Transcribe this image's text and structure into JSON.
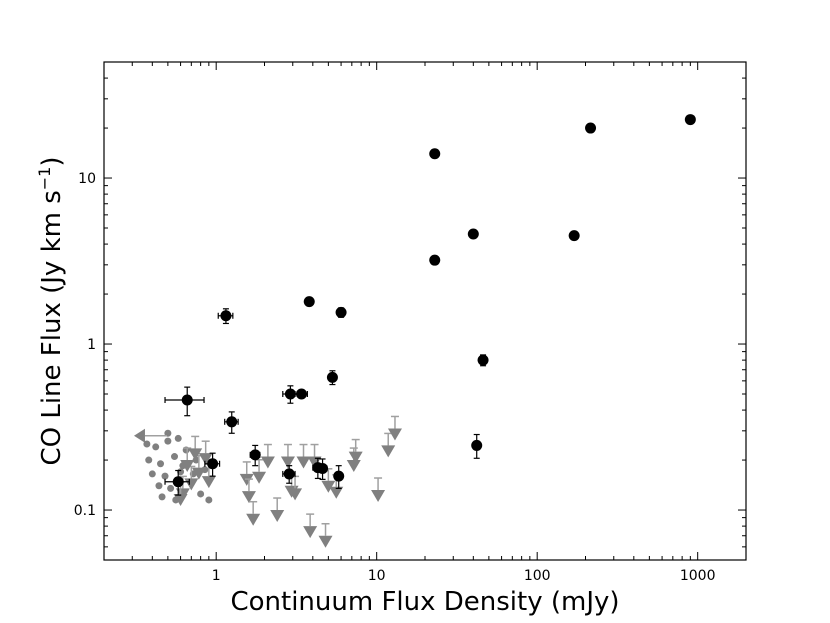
{
  "chart_data": {
    "type": "scatter",
    "xlabel": "Continuum Flux Density (mJy)",
    "ylabel": "CO Line Flux (Jy km s",
    "ylabel_sup": "−1",
    "ylabel_close": ")",
    "xscale": "log",
    "yscale": "log",
    "xlim": [
      0.2,
      2000
    ],
    "ylim": [
      0.05,
      50
    ],
    "grid": false,
    "x_ticks": [
      {
        "value": 1,
        "label": "1"
      },
      {
        "value": 10,
        "label": "10"
      },
      {
        "value": 100,
        "label": "100"
      },
      {
        "value": 1000,
        "label": "1000"
      }
    ],
    "y_ticks": [
      {
        "value": 0.1,
        "label": "0.1"
      },
      {
        "value": 1,
        "label": "1"
      },
      {
        "value": 10,
        "label": "10"
      }
    ],
    "colors": {
      "detections": "#000000",
      "limits": "#808080"
    },
    "detections": [
      {
        "x": 900,
        "y": 22.5
      },
      {
        "x": 215,
        "y": 20
      },
      {
        "x": 23,
        "y": 14
      },
      {
        "x": 40,
        "y": 4.6
      },
      {
        "x": 170,
        "y": 4.5
      },
      {
        "x": 23,
        "y": 3.2
      },
      {
        "x": 3.8,
        "y": 1.8
      },
      {
        "x": 6.0,
        "y": 1.55,
        "yerr": 0.1
      },
      {
        "x": 1.15,
        "y": 1.48,
        "xerr": 0.12,
        "yerr": 0.15
      },
      {
        "x": 46,
        "y": 0.8,
        "yerr": 0.06
      },
      {
        "x": 5.3,
        "y": 0.63,
        "yerr": 0.06
      },
      {
        "x": 2.9,
        "y": 0.5,
        "xerr": 0.3,
        "yerr": 0.06
      },
      {
        "x": 3.4,
        "y": 0.5,
        "xerr": 0.3
      },
      {
        "x": 0.66,
        "y": 0.46,
        "xerr": 0.18,
        "yerr": 0.09
      },
      {
        "x": 1.25,
        "y": 0.34,
        "xerr": 0.12,
        "yerr": 0.05
      },
      {
        "x": 42,
        "y": 0.245,
        "yerr": 0.04
      },
      {
        "x": 1.75,
        "y": 0.215,
        "xerr": 0.12,
        "yerr": 0.03
      },
      {
        "x": 0.95,
        "y": 0.19,
        "xerr": 0.1,
        "yerr": 0.03
      },
      {
        "x": 4.3,
        "y": 0.18,
        "xerr": 0.3,
        "yerr": 0.025
      },
      {
        "x": 4.6,
        "y": 0.178,
        "xerr": 0.3,
        "yerr": 0.025
      },
      {
        "x": 5.8,
        "y": 0.16,
        "yerr": 0.025
      },
      {
        "x": 2.85,
        "y": 0.165,
        "xerr": 0.25,
        "yerr": 0.02
      },
      {
        "x": 0.58,
        "y": 0.148,
        "xerr": 0.1,
        "yerr": 0.025
      }
    ],
    "limit_dots": [
      {
        "x": 0.37,
        "y": 0.25
      },
      {
        "x": 0.42,
        "y": 0.24
      },
      {
        "x": 0.5,
        "y": 0.26
      },
      {
        "x": 0.38,
        "y": 0.2
      },
      {
        "x": 0.45,
        "y": 0.19
      },
      {
        "x": 0.55,
        "y": 0.21
      },
      {
        "x": 0.4,
        "y": 0.165
      },
      {
        "x": 0.48,
        "y": 0.16
      },
      {
        "x": 0.6,
        "y": 0.17
      },
      {
        "x": 0.44,
        "y": 0.14
      },
      {
        "x": 0.52,
        "y": 0.135
      },
      {
        "x": 0.7,
        "y": 0.145
      },
      {
        "x": 0.46,
        "y": 0.12
      },
      {
        "x": 0.56,
        "y": 0.115
      },
      {
        "x": 0.8,
        "y": 0.125
      },
      {
        "x": 0.9,
        "y": 0.115
      },
      {
        "x": 0.65,
        "y": 0.23
      },
      {
        "x": 0.75,
        "y": 0.2
      },
      {
        "x": 0.85,
        "y": 0.175
      },
      {
        "x": 0.62,
        "y": 0.185
      },
      {
        "x": 0.72,
        "y": 0.165
      },
      {
        "x": 0.5,
        "y": 0.29
      },
      {
        "x": 0.58,
        "y": 0.27
      }
    ],
    "upper_limits": [
      {
        "x": 0.62,
        "y": 0.135
      },
      {
        "x": 0.7,
        "y": 0.155
      },
      {
        "x": 0.78,
        "y": 0.18
      },
      {
        "x": 0.66,
        "y": 0.2
      },
      {
        "x": 0.86,
        "y": 0.22
      },
      {
        "x": 0.9,
        "y": 0.16
      },
      {
        "x": 0.74,
        "y": 0.235
      },
      {
        "x": 0.6,
        "y": 0.125
      },
      {
        "x": 1.55,
        "y": 0.165
      },
      {
        "x": 1.6,
        "y": 0.13
      },
      {
        "x": 1.7,
        "y": 0.095
      },
      {
        "x": 1.85,
        "y": 0.17
      },
      {
        "x": 2.1,
        "y": 0.21
      },
      {
        "x": 2.4,
        "y": 0.1
      },
      {
        "x": 2.8,
        "y": 0.21
      },
      {
        "x": 2.95,
        "y": 0.14
      },
      {
        "x": 3.1,
        "y": 0.135
      },
      {
        "x": 3.5,
        "y": 0.21
      },
      {
        "x": 3.85,
        "y": 0.08
      },
      {
        "x": 4.1,
        "y": 0.21
      },
      {
        "x": 4.8,
        "y": 0.07
      },
      {
        "x": 5.0,
        "y": 0.15
      },
      {
        "x": 5.6,
        "y": 0.138
      },
      {
        "x": 7.2,
        "y": 0.2
      },
      {
        "x": 7.4,
        "y": 0.225
      },
      {
        "x": 10.2,
        "y": 0.132
      },
      {
        "x": 11.8,
        "y": 0.245
      },
      {
        "x": 13,
        "y": 0.31
      }
    ],
    "left_limits": [
      {
        "x": 0.36,
        "y": 0.28
      }
    ]
  }
}
